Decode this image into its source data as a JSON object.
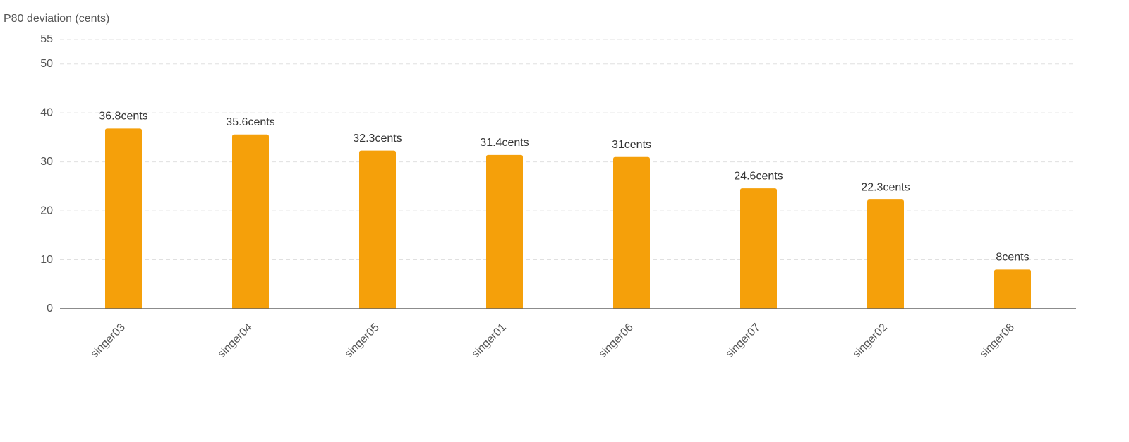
{
  "chart_data": {
    "type": "bar",
    "y_axis_label": "P80 deviation (cents)",
    "categories": [
      "singer03",
      "singer04",
      "singer05",
      "singer01",
      "singer06",
      "singer07",
      "singer02",
      "singer08"
    ],
    "values": [
      36.8,
      35.6,
      32.3,
      31.4,
      31,
      24.6,
      22.3,
      8
    ],
    "value_labels": [
      "36.8cents",
      "35.6cents",
      "32.3cents",
      "31.4cents",
      "31cents",
      "24.6cents",
      "22.3cents",
      "8cents"
    ],
    "color": "#f5a00a",
    "ylim": [
      0,
      55
    ],
    "yticks": [
      0,
      10,
      20,
      30,
      40,
      50,
      55
    ],
    "grid": true
  }
}
